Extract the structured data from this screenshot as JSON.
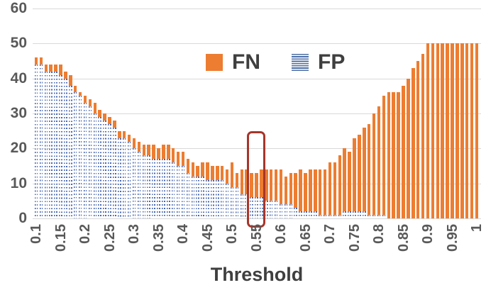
{
  "chart_data": {
    "type": "bar",
    "subtype": "stacked",
    "xlabel": "Threshold",
    "ylabel": "",
    "ylim": [
      0,
      60
    ],
    "yticks": [
      0,
      10,
      20,
      30,
      40,
      50,
      60
    ],
    "xticks": [
      "0.1",
      "0.15",
      "0.2",
      "0.25",
      "0.3",
      "0.35",
      "0.4",
      "0.45",
      "0.5",
      "0.55",
      "0.6",
      "0.65",
      "0.7",
      "0.75",
      "0.8",
      "0.85",
      "0.9",
      "0.95",
      "1"
    ],
    "grid": true,
    "legend_position": "top-center",
    "x": [
      0.1,
      0.11,
      0.12,
      0.13,
      0.14,
      0.15,
      0.16,
      0.17,
      0.18,
      0.19,
      0.2,
      0.21,
      0.22,
      0.23,
      0.24,
      0.25,
      0.26,
      0.27,
      0.28,
      0.29,
      0.3,
      0.31,
      0.32,
      0.33,
      0.34,
      0.35,
      0.36,
      0.37,
      0.38,
      0.39,
      0.4,
      0.41,
      0.42,
      0.43,
      0.44,
      0.45,
      0.46,
      0.47,
      0.48,
      0.49,
      0.5,
      0.51,
      0.52,
      0.53,
      0.54,
      0.55,
      0.56,
      0.57,
      0.58,
      0.59,
      0.6,
      0.61,
      0.62,
      0.63,
      0.64,
      0.65,
      0.66,
      0.67,
      0.68,
      0.69,
      0.7,
      0.71,
      0.72,
      0.73,
      0.74,
      0.75,
      0.76,
      0.77,
      0.78,
      0.79,
      0.8,
      0.81,
      0.82,
      0.83,
      0.84,
      0.85,
      0.86,
      0.87,
      0.88,
      0.89,
      0.9,
      0.91,
      0.92,
      0.93,
      0.94,
      0.95,
      0.96,
      0.97,
      0.98,
      0.99,
      1
    ],
    "series": [
      {
        "name": "FN",
        "color": "#ED7D31",
        "pattern": "solid",
        "stack_position": "top",
        "values": [
          2,
          2,
          2,
          2,
          2,
          3,
          2,
          3,
          2,
          1,
          2,
          2,
          3,
          2,
          2,
          2,
          2,
          2,
          2,
          2,
          3,
          3,
          3,
          3,
          4,
          3,
          4,
          4,
          4,
          4,
          4,
          4,
          4,
          3,
          4,
          5,
          4,
          4,
          4,
          4,
          7,
          4,
          7,
          7,
          7,
          7,
          8,
          9,
          9,
          9,
          10,
          8,
          9,
          10,
          12,
          11,
          12,
          12,
          13,
          13,
          15,
          15,
          17,
          18,
          17,
          21,
          22,
          24,
          26,
          29,
          31,
          34,
          36,
          36,
          36,
          38,
          40,
          43,
          45,
          47,
          50,
          50,
          50,
          50,
          50,
          50,
          50,
          50,
          50,
          50,
          50
        ]
      },
      {
        "name": "FP",
        "color": "#4565AE",
        "pattern": "horizontal-dashes",
        "stack_position": "bottom",
        "values": [
          44,
          44,
          42,
          42,
          42,
          41,
          40,
          38,
          36,
          35,
          33,
          32,
          30,
          29,
          28,
          27,
          26,
          23,
          23,
          22,
          20,
          19,
          18,
          18,
          17,
          17,
          17,
          17,
          16,
          15,
          15,
          13,
          12,
          12,
          12,
          11,
          11,
          11,
          11,
          10,
          9,
          9,
          7,
          7,
          6,
          6,
          6,
          5,
          5,
          5,
          4,
          4,
          4,
          3,
          2,
          2,
          2,
          2,
          1,
          1,
          1,
          1,
          1,
          2,
          2,
          2,
          2,
          2,
          1,
          1,
          1,
          1,
          0,
          0,
          0,
          0,
          0,
          0,
          0,
          0,
          0,
          0,
          0,
          0,
          0,
          0,
          0,
          0,
          0,
          0,
          0
        ]
      }
    ],
    "highlight": {
      "shape": "rounded-rect",
      "color": "#A8352A",
      "x_from": 0.54,
      "x_to": 0.55,
      "y_top": 25,
      "y_bottom": -1.5
    },
    "colors": {
      "grid": "#d9d9d9",
      "axis_text": "#595959",
      "legend_text": "#3f3f3f",
      "fn": "#ED7D31",
      "fp": "#4565AE",
      "highlight": "#A8352A"
    }
  }
}
